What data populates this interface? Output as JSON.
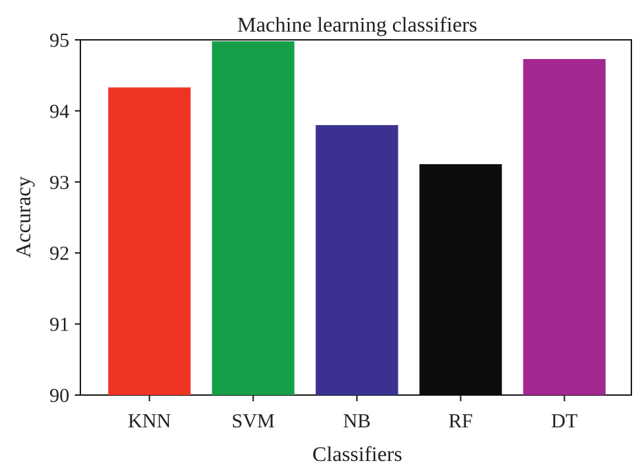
{
  "chart_data": {
    "type": "bar",
    "title": "Machine learning classifiers",
    "xlabel": "Classifiers",
    "ylabel": "Accuracy",
    "categories": [
      "KNN",
      "SVM",
      "NB",
      "RF",
      "DT"
    ],
    "values": [
      94.33,
      94.98,
      93.8,
      93.25,
      94.73
    ],
    "colors": [
      "#ee3524",
      "#169f48",
      "#3a3191",
      "#0d0d0d",
      "#a2288f"
    ],
    "ylim": [
      90,
      95
    ],
    "yticks": [
      "90",
      "91",
      "92",
      "93",
      "94",
      "95"
    ],
    "grid": false,
    "legend": "none"
  }
}
